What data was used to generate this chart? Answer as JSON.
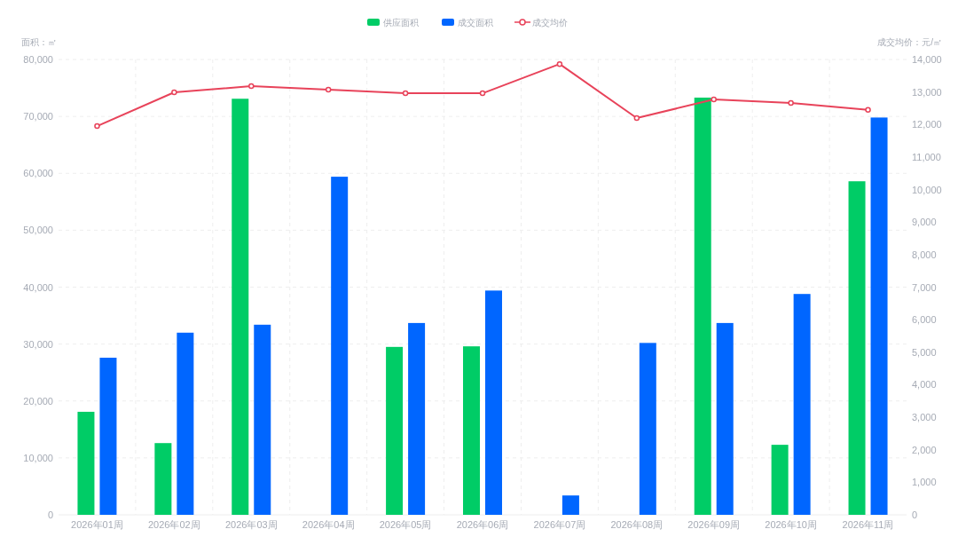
{
  "chart_data": {
    "type": "bar",
    "categories": [
      "2026年01周",
      "2026年02周",
      "2026年03周",
      "2026年04周",
      "2026年05周",
      "2026年06周",
      "2026年07周",
      "2026年08周",
      "2026年09周",
      "2026年10周",
      "2026年11周"
    ],
    "series": [
      {
        "name": "供应面积",
        "color": "#00cc66",
        "values": [
          18100,
          12600,
          73100,
          null,
          29500,
          29600,
          null,
          null,
          73300,
          12300,
          58600
        ]
      },
      {
        "name": "成交面积",
        "color": "#0066ff",
        "values": [
          27600,
          32000,
          33400,
          59400,
          33700,
          39400,
          3400,
          30200,
          33700,
          38800,
          69800
        ]
      },
      {
        "name": "成交均价",
        "type": "line",
        "axis": "y2",
        "color": "#e8435a",
        "values": [
          11950,
          12990,
          13180,
          13070,
          12960,
          12960,
          13860,
          12200,
          12770,
          12660,
          12450
        ]
      }
    ],
    "ylabel": "面积：㎡",
    "y2label": "成交均价：元/㎡",
    "ylim": [
      0,
      80000
    ],
    "yticks": [
      0,
      {
        "value": 10000,
        "label": "10,000"
      },
      {
        "value": 20000,
        "label": "20,000"
      },
      {
        "value": 30000,
        "label": "30,000"
      },
      {
        "value": 40000,
        "label": "40,000"
      },
      {
        "value": 50000,
        "label": "50,000"
      },
      {
        "value": 60000,
        "label": "60,000"
      },
      {
        "value": 70000,
        "label": "70,000"
      },
      {
        "value": 80000,
        "label": "80,000"
      }
    ],
    "y2lim": [
      0,
      14000
    ],
    "y2ticks": [
      0,
      {
        "value": 1000,
        "label": "1,000"
      },
      {
        "value": 2000,
        "label": "2,000"
      },
      {
        "value": 3000,
        "label": "3,000"
      },
      {
        "value": 4000,
        "label": "4,000"
      },
      {
        "value": 5000,
        "label": "5,000"
      },
      {
        "value": 6000,
        "label": "6,000"
      },
      {
        "value": 7000,
        "label": "7,000"
      },
      {
        "value": 8000,
        "label": "8,000"
      },
      {
        "value": 9000,
        "label": "9,000"
      },
      {
        "value": 10000,
        "label": "10,000"
      },
      {
        "value": 11000,
        "label": "11,000"
      },
      {
        "value": 12000,
        "label": "12,000"
      },
      {
        "value": 13000,
        "label": "13,000"
      },
      {
        "value": 14000,
        "label": "14,000"
      }
    ],
    "grid": true,
    "legend": "top",
    "marker": "circle"
  }
}
